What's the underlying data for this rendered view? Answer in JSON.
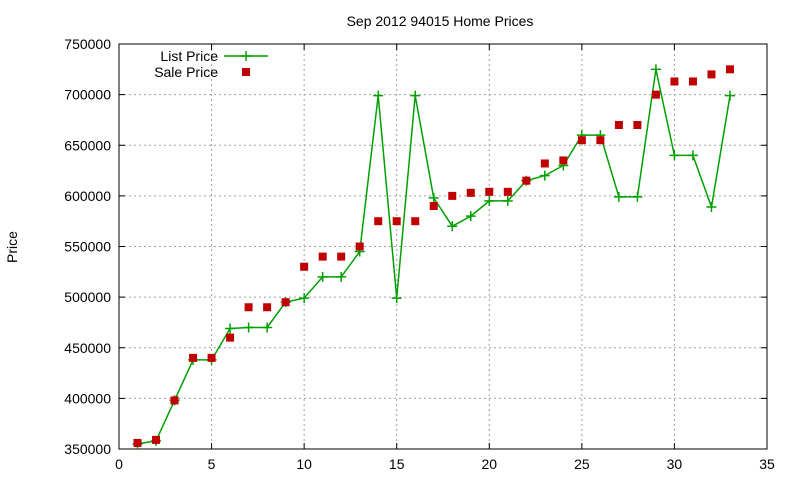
{
  "chart_data": {
    "type": "line",
    "title": "Sep 2012 94015 Home Prices",
    "xlabel": "",
    "ylabel": "Price",
    "xlim": [
      0,
      35
    ],
    "ylim": [
      350000,
      750000
    ],
    "xticks": [
      0,
      5,
      10,
      15,
      20,
      25,
      30,
      35
    ],
    "yticks": [
      350000,
      400000,
      450000,
      500000,
      550000,
      600000,
      650000,
      700000,
      750000
    ],
    "grid": true,
    "legend_position": "top-left",
    "series": [
      {
        "name": "List Price",
        "style": "line-with-plus-markers",
        "color": "#00a000",
        "x": [
          1,
          2,
          3,
          4,
          5,
          6,
          7,
          8,
          9,
          10,
          11,
          12,
          13,
          14,
          15,
          16,
          17,
          18,
          19,
          20,
          21,
          22,
          23,
          24,
          25,
          26,
          27,
          28,
          29,
          30,
          31,
          32,
          33
        ],
        "values": [
          355000,
          358000,
          398000,
          438000,
          438000,
          469000,
          470000,
          470000,
          495000,
          499000,
          520000,
          520000,
          545000,
          699000,
          499000,
          699000,
          598000,
          570000,
          580000,
          595000,
          595000,
          615000,
          620000,
          630000,
          660000,
          660000,
          599000,
          599000,
          725000,
          640000,
          640000,
          589000,
          699000
        ]
      },
      {
        "name": "Sale Price",
        "style": "square-markers",
        "color": "#c00000",
        "x": [
          1,
          2,
          3,
          4,
          5,
          6,
          7,
          8,
          9,
          10,
          11,
          12,
          13,
          14,
          15,
          16,
          17,
          18,
          19,
          20,
          21,
          22,
          23,
          24,
          25,
          26,
          27,
          28,
          29,
          30,
          31,
          32,
          33
        ],
        "values": [
          356000,
          359000,
          398000,
          440000,
          440000,
          460000,
          490000,
          490000,
          495000,
          530000,
          540000,
          540000,
          550000,
          575000,
          575000,
          575000,
          590000,
          600000,
          603000,
          604000,
          604000,
          615000,
          632000,
          635000,
          655000,
          655000,
          670000,
          670000,
          700000,
          713000,
          713000,
          720000,
          725000
        ]
      }
    ]
  }
}
